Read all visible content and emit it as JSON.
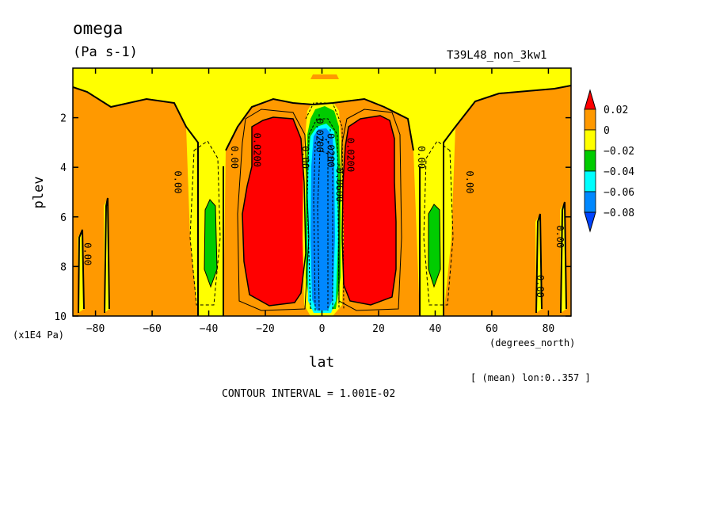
{
  "header": {
    "title": "omega",
    "units": "(Pa s-1)",
    "run": "T39L48_non_3kw1"
  },
  "footer": {
    "xunits": "(degrees_north)",
    "yunits": "(x1E4 Pa)",
    "mean_note": "[ (mean) lon:0..357 ]",
    "contour_interval": "CONTOUR INTERVAL = 1.001E-02"
  },
  "chart_data": {
    "type": "heatmap",
    "title": "omega",
    "subtitle": "(Pa s-1)",
    "xlabel": "lat",
    "ylabel": "plev",
    "xlim": [
      -88,
      88
    ],
    "ylim": [
      10,
      0
    ],
    "xticks": [
      -80,
      -60,
      -40,
      -20,
      0,
      20,
      40,
      60,
      80
    ],
    "xtick_labels": [
      "−80",
      "−60",
      "−40",
      "−20",
      "0",
      "20",
      "40",
      "60",
      "80"
    ],
    "yticks": [
      2,
      4,
      6,
      8,
      10
    ],
    "ytick_labels": [
      "2",
      "4",
      "6",
      "8",
      "10"
    ],
    "colorbar": {
      "labels": [
        "0.02",
        "0",
        "−0.02",
        "−0.04",
        "−0.06",
        "−0.08"
      ],
      "colors": [
        "#ff0000",
        "#ff9900",
        "#ffff00",
        "#00cc00",
        "#00ffff",
        "#0088ff",
        "#0044ff"
      ]
    },
    "contour_labels": [
      {
        "text": "0.00",
        "lat": -84,
        "plev": 7.5
      },
      {
        "text": "0.00",
        "lat": -52,
        "plev": 4.6
      },
      {
        "text": "0.00",
        "lat": -32,
        "plev": 3.6
      },
      {
        "text": "0.0200",
        "lat": -24,
        "plev": 3.3
      },
      {
        "text": "0.00",
        "lat": -7,
        "plev": 3.6
      },
      {
        "text": "-0.0200",
        "lat": -2,
        "plev": 2.6
      },
      {
        "text": "-0.0200",
        "lat": 2,
        "plev": 3.2
      },
      {
        "text": "0.0200",
        "lat": 9,
        "plev": 3.5
      },
      {
        "text": "-0.0600",
        "lat": 5,
        "plev": 4.6
      },
      {
        "text": "0.00",
        "lat": 34,
        "plev": 3.6
      },
      {
        "text": "0.00",
        "lat": 51,
        "plev": 4.6
      },
      {
        "text": "0.00",
        "lat": 83,
        "plev": 6.8
      },
      {
        "text": "0.00",
        "lat": 76,
        "plev": 8.8
      }
    ]
  }
}
